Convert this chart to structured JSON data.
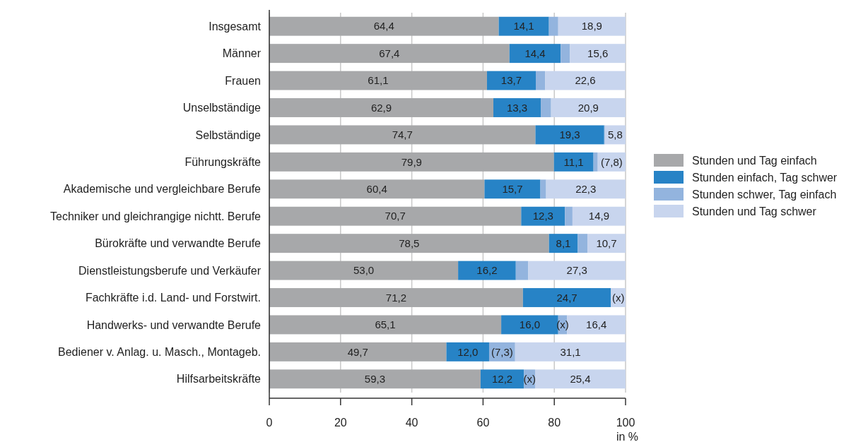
{
  "chart_data": {
    "type": "bar",
    "orientation": "horizontal",
    "stacked": true,
    "categories": [
      "Insgesamt",
      "Männer",
      "Frauen",
      "Unselbständige",
      "Selbständige",
      "Führungskräfte",
      "Akademische und vergleichbare Berufe",
      "Techniker und gleichrangige nichtt. Berufe",
      "Bürokräfte und verwandte Berufe",
      "Dienstleistungsberufe und Verkäufer",
      "Fachkräfte i.d. Land- und Forstwirt.",
      "Handwerks- und verwandte Berufe",
      "Bediener v. Anlag. u. Masch., Montageb.",
      "Hilfsarbeitskräfte"
    ],
    "series": [
      {
        "name": "Stunden und Tag einfach",
        "color": "#a7a8aa",
        "values": [
          64.4,
          67.4,
          61.1,
          62.9,
          74.7,
          79.9,
          60.4,
          70.7,
          78.5,
          53.0,
          71.2,
          65.1,
          49.7,
          59.3
        ],
        "value_labels": [
          "64,4",
          "67,4",
          "61,1",
          "62,9",
          "74,7",
          "79,9",
          "60,4",
          "70,7",
          "78,5",
          "53,0",
          "71,2",
          "65,1",
          "49,7",
          "59,3"
        ]
      },
      {
        "name": "Stunden einfach, Tag schwer",
        "color": "#2783c6",
        "values": [
          14.1,
          14.4,
          13.7,
          13.3,
          19.3,
          11.1,
          15.7,
          12.3,
          8.1,
          16.2,
          24.7,
          16.0,
          12.0,
          12.2
        ],
        "value_labels": [
          "14,1",
          "14,4",
          "13,7",
          "13,3",
          "19,3",
          "11,1",
          "15,7",
          "12,3",
          "8,1",
          "16,2",
          "24,7",
          "16,0",
          "12,0",
          "12,2"
        ]
      },
      {
        "name": "Stunden schwer, Tag einfach",
        "color": "#93b4de",
        "values": [
          2.6,
          2.6,
          2.6,
          2.9,
          0.2,
          1.2,
          1.6,
          2.1,
          2.7,
          3.5,
          null,
          2.5,
          7.3,
          3.1
        ],
        "value_labels": [
          null,
          null,
          null,
          null,
          null,
          null,
          null,
          null,
          null,
          null,
          null,
          "(x)",
          "(7,3)",
          "(x)"
        ]
      },
      {
        "name": "Stunden und Tag schwer",
        "color": "#c8d5ee",
        "values": [
          18.9,
          15.6,
          22.6,
          20.9,
          5.8,
          7.8,
          22.3,
          14.9,
          10.7,
          27.3,
          4.1,
          16.4,
          31.1,
          25.4
        ],
        "value_labels": [
          "18,9",
          "15,6",
          "22,6",
          "20,9",
          "5,8",
          "(7,8)",
          "22,3",
          "14,9",
          "10,7",
          "27,3",
          "(x)",
          "16,4",
          "31,1",
          "25,4"
        ]
      }
    ],
    "xlim": [
      0,
      100
    ],
    "xticks": [
      0,
      20,
      40,
      60,
      80,
      100
    ],
    "xlabel": "in %",
    "grid": "x",
    "legend": "right"
  }
}
